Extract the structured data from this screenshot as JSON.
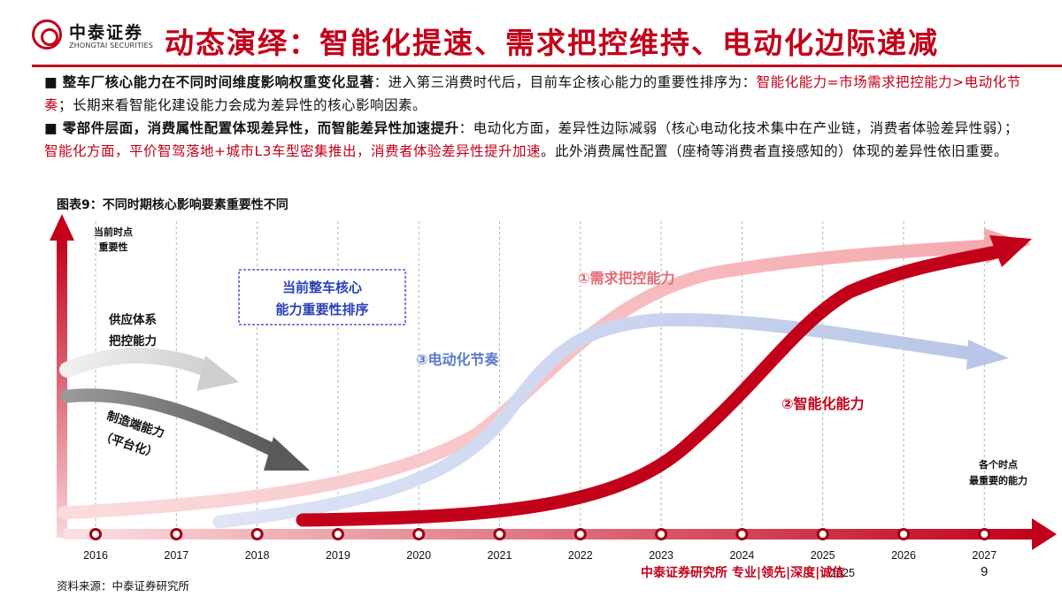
{
  "header": {
    "logo_cn": "中泰证券",
    "logo_en": "ZHONGTAI SECURITIES",
    "title": "动态演绎：智能化提速、需求把控维持、电动化边际递减"
  },
  "bullets": [
    {
      "marker": "■",
      "segments": [
        {
          "text": "整车厂核心能力在不同时间维度影响权重变化显著",
          "style": "bold"
        },
        {
          "text": "：进入第三消费时代后，目前车企核心能力的重要性排序为：",
          "style": "normal"
        },
        {
          "text": "智能化能力=市场需求把控能力>电动化节奏",
          "style": "red"
        },
        {
          "text": "；长期来看智能化建设能力会成为差异性的核心影响因素。",
          "style": "normal"
        }
      ]
    },
    {
      "marker": "■",
      "segments": [
        {
          "text": "零部件层面，消费属性配置体现差异性，而智能差异性加速提升",
          "style": "bold"
        },
        {
          "text": "：电动化方面，差异性边际减弱（核心电动化技术集中在产业链，消费者体验差异性弱）；",
          "style": "normal"
        },
        {
          "text": "智能化方面，平价智驾落地+城市L3车型密集推出，消费者体验差异性提升加速",
          "style": "red"
        },
        {
          "text": "。此外消费属性配置（座椅等消费者直接感知的）体现的差异性依旧重要。",
          "style": "normal"
        }
      ]
    }
  ],
  "figure": {
    "title": "图表9：不同时期核心影响要素重要性不同",
    "y_axis_label": [
      "当前时点",
      "重要性"
    ],
    "timeline_label": [
      "各个时点",
      "最重要的能力"
    ],
    "box_label": [
      "当前整车核心",
      "能力重要性排序"
    ],
    "supply_label": [
      "供应体系",
      "把控能力"
    ],
    "manufacturing_label": [
      "制造端能力",
      "（平台化）"
    ],
    "curve_labels": {
      "demand": "①需求把控能力",
      "electrification": "③电动化节奏",
      "intelligence": "②智能化能力"
    },
    "years": [
      "2016",
      "2017",
      "2018",
      "2019",
      "2020",
      "2021",
      "2022",
      "2023",
      "2024",
      "2025",
      "2026",
      "2027"
    ],
    "colors": {
      "brand_red": "#c2001a",
      "demand_pink": "#f4a9ad",
      "electrification_blue": "#c2cdea",
      "electrification_text": "#5b79c9",
      "grey_light": "#d9d9d9",
      "grey_dark": "#707070",
      "box_blue": "#2a3fb8"
    }
  },
  "footer": {
    "source": "资料来源：中泰证券研究所",
    "slogan": "中泰证券研究所 专业|领先|深度|诚信",
    "page": "9",
    "overlap_year": "2025"
  }
}
